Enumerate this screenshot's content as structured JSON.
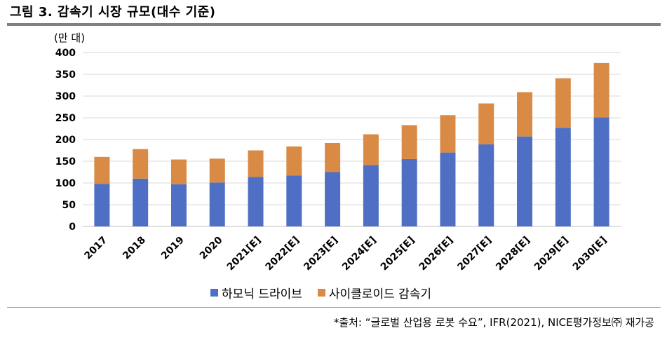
{
  "figure": {
    "title": "그림 3. 감속기 시장 규모(대수 기준)",
    "unit": "(만 대)",
    "source": "*출처: “글로벌 산업용 로봇 수요”, IFR(2021), NICE평가정보㈜ 재가공"
  },
  "colors": {
    "harmonic": "#4F6FC5",
    "cycloid": "#D98A45",
    "grid": "#d9d9d9",
    "axis": "#bfbfbf"
  },
  "chart_data": {
    "type": "bar",
    "stacked": true,
    "categories": [
      "2017",
      "2018",
      "2019",
      "2020",
      "2021[E]",
      "2022[E]",
      "2023[E]",
      "2024[E]",
      "2025[E]",
      "2026[E]",
      "2027[E]",
      "2028[E]",
      "2029[E]",
      "2030[E]"
    ],
    "series": [
      {
        "name": "하모닉 드라이브",
        "values": [
          98,
          110,
          97,
          101,
          114,
          117,
          125,
          141,
          155,
          170,
          189,
          207,
          227,
          251
        ]
      },
      {
        "name": "사이클로이드 감속기",
        "values": [
          62,
          68,
          57,
          55,
          61,
          67,
          67,
          71,
          78,
          86,
          94,
          102,
          114,
          125
        ]
      }
    ],
    "yticks": [
      0,
      50,
      100,
      150,
      200,
      250,
      300,
      350,
      400
    ],
    "ylim": [
      0,
      400
    ],
    "ylabel": "(만 대)",
    "legend": "bottom"
  }
}
